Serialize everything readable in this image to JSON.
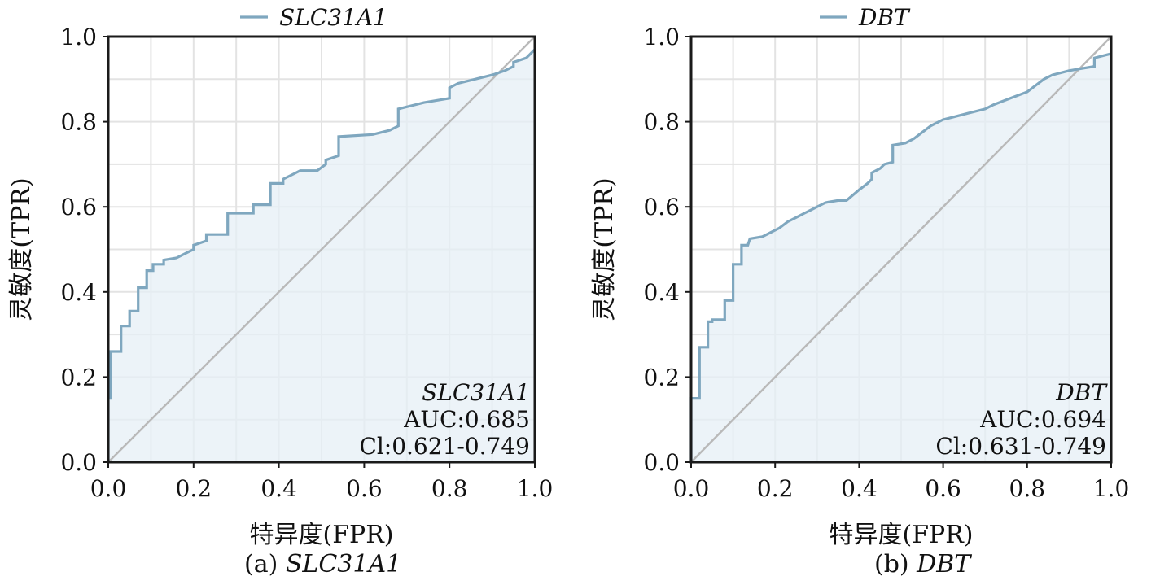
{
  "charts": [
    {
      "caption_prefix": "(a)",
      "caption_gene": "SLC31A1",
      "chart_data": {
        "type": "line",
        "series": [
          {
            "name": "SLC31A1",
            "color": "#7fa7bf",
            "x": [
              0.0,
              0.0,
              0.005,
              0.005,
              0.03,
              0.03,
              0.05,
              0.05,
              0.07,
              0.07,
              0.09,
              0.09,
              0.105,
              0.105,
              0.13,
              0.13,
              0.16,
              0.18,
              0.2,
              0.2,
              0.23,
              0.23,
              0.28,
              0.28,
              0.34,
              0.34,
              0.38,
              0.38,
              0.41,
              0.41,
              0.43,
              0.45,
              0.49,
              0.51,
              0.51,
              0.54,
              0.54,
              0.62,
              0.66,
              0.68,
              0.68,
              0.74,
              0.8,
              0.8,
              0.82,
              0.86,
              0.9,
              0.93,
              0.95,
              0.95,
              0.98,
              1.0
            ],
            "y": [
              0.0,
              0.15,
              0.15,
              0.26,
              0.26,
              0.32,
              0.32,
              0.355,
              0.355,
              0.41,
              0.41,
              0.45,
              0.45,
              0.465,
              0.465,
              0.475,
              0.48,
              0.49,
              0.5,
              0.51,
              0.52,
              0.535,
              0.535,
              0.585,
              0.585,
              0.605,
              0.605,
              0.655,
              0.655,
              0.665,
              0.675,
              0.685,
              0.685,
              0.7,
              0.71,
              0.72,
              0.765,
              0.77,
              0.78,
              0.79,
              0.83,
              0.845,
              0.855,
              0.88,
              0.89,
              0.9,
              0.91,
              0.92,
              0.93,
              0.94,
              0.95,
              0.97
            ]
          }
        ],
        "diagonal": true,
        "xlabel": "特异度(FPR)",
        "ylabel": "灵敏度(TPR)",
        "xlim": [
          0,
          1
        ],
        "ylim": [
          0,
          1
        ],
        "x_ticks": [
          "0.0",
          "0.2",
          "0.4",
          "0.6",
          "0.8",
          "1.0"
        ],
        "y_ticks": [
          "0.0",
          "0.2",
          "0.4",
          "0.6",
          "0.8",
          "1.0"
        ],
        "grid": true,
        "legend": {
          "position": "top-center",
          "entries": [
            "SLC31A1"
          ]
        },
        "annotation": {
          "position": "bottom-right",
          "lines": [
            "SLC31A1",
            "AUC:0.685",
            "Cl:0.621-0.749"
          ]
        }
      }
    },
    {
      "caption_prefix": "(b)",
      "caption_gene": "DBT",
      "chart_data": {
        "type": "line",
        "series": [
          {
            "name": "DBT",
            "color": "#7fa7bf",
            "x": [
              0.0,
              0.0,
              0.02,
              0.02,
              0.04,
              0.04,
              0.05,
              0.05,
              0.08,
              0.08,
              0.1,
              0.1,
              0.12,
              0.12,
              0.135,
              0.14,
              0.17,
              0.19,
              0.21,
              0.23,
              0.25,
              0.27,
              0.28,
              0.3,
              0.32,
              0.35,
              0.37,
              0.4,
              0.42,
              0.43,
              0.43,
              0.45,
              0.46,
              0.48,
              0.48,
              0.51,
              0.53,
              0.55,
              0.57,
              0.59,
              0.6,
              0.62,
              0.66,
              0.7,
              0.72,
              0.76,
              0.8,
              0.82,
              0.84,
              0.86,
              0.9,
              0.93,
              0.96,
              0.96,
              1.0
            ],
            "y": [
              0.0,
              0.15,
              0.15,
              0.27,
              0.27,
              0.33,
              0.33,
              0.335,
              0.335,
              0.38,
              0.38,
              0.465,
              0.465,
              0.51,
              0.51,
              0.525,
              0.53,
              0.54,
              0.55,
              0.565,
              0.575,
              0.585,
              0.59,
              0.6,
              0.61,
              0.615,
              0.615,
              0.64,
              0.655,
              0.665,
              0.68,
              0.69,
              0.7,
              0.705,
              0.745,
              0.75,
              0.76,
              0.775,
              0.79,
              0.8,
              0.805,
              0.81,
              0.82,
              0.83,
              0.84,
              0.855,
              0.87,
              0.885,
              0.9,
              0.91,
              0.92,
              0.925,
              0.93,
              0.95,
              0.96
            ]
          }
        ],
        "diagonal": true,
        "xlabel": "特异度(FPR)",
        "ylabel": "灵敏度(TPR)",
        "xlim": [
          0,
          1
        ],
        "ylim": [
          0,
          1
        ],
        "x_ticks": [
          "0.0",
          "0.2",
          "0.4",
          "0.6",
          "0.8",
          "1.0"
        ],
        "y_ticks": [
          "0.0",
          "0.2",
          "0.4",
          "0.6",
          "0.8",
          "1.0"
        ],
        "grid": true,
        "legend": {
          "position": "top-center",
          "entries": [
            "DBT"
          ]
        },
        "annotation": {
          "position": "bottom-right",
          "lines": [
            "DBT",
            "AUC:0.694",
            "Cl:0.631-0.749"
          ]
        }
      }
    }
  ]
}
